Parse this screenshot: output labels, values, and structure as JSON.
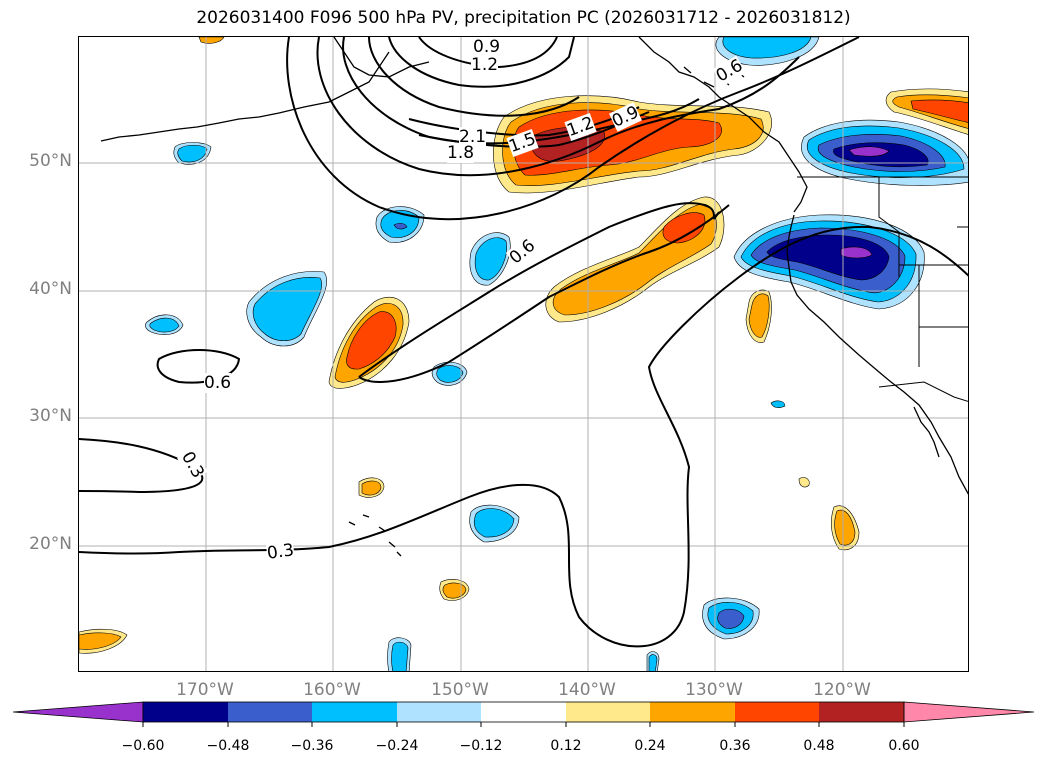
{
  "title": "2026031400 F096 500 hPa PV, precipitation PC (2026031712 - 2026031812)",
  "map": {
    "lat_labels": [
      "50°N",
      "40°N",
      "30°N",
      "20°N"
    ],
    "lon_labels": [
      "170°W",
      "160°W",
      "150°W",
      "140°W",
      "130°W",
      "120°W"
    ],
    "contour_labels": [
      "0.9",
      "1.2",
      "2.1",
      "1.8",
      "1.5",
      "1.2",
      "0.9",
      "0.6",
      "0.6",
      "0.6",
      "0.3",
      "0.3"
    ],
    "coastline_color": "#000000",
    "grid_color": "#b0b0b0"
  },
  "colorbar": {
    "ticks": [
      "−0.60",
      "−0.48",
      "−0.36",
      "−0.24",
      "−0.12",
      "0.12",
      "0.24",
      "0.36",
      "0.48",
      "0.60"
    ],
    "colors": [
      "#9932cc",
      "#00008b",
      "#3a5fcd",
      "#00bfff",
      "#aee2ff",
      "#ffffff",
      "#ffe98a",
      "#ffa500",
      "#ff4500",
      "#b22222",
      "#ff88aa"
    ]
  }
}
